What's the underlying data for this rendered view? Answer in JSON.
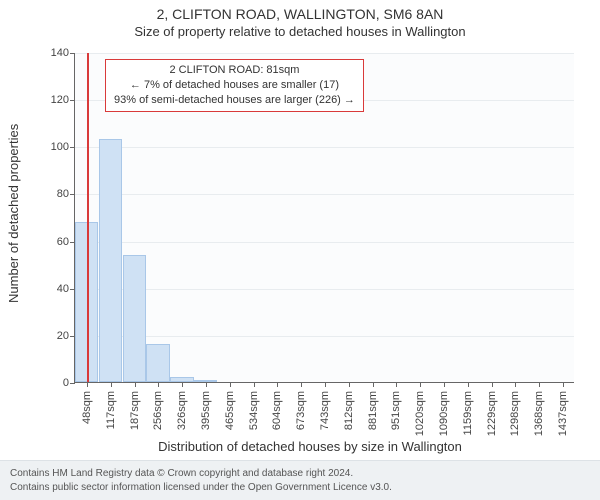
{
  "title_main": "2, CLIFTON ROAD, WALLINGTON, SM6 8AN",
  "title_sub": "Size of property relative to detached houses in Wallington",
  "ylabel": "Number of detached properties",
  "xlabel": "Distribution of detached houses by size in Wallington",
  "footer_line1": "Contains HM Land Registry data © Crown copyright and database right 2024.",
  "footer_line2": "Contains public sector information licensed under the Open Government Licence v3.0.",
  "chart": {
    "type": "bar",
    "background_color": "#fbfcfd",
    "grid_color": "#e8ecef",
    "axis_color": "#666666",
    "bar_fill": "#cfe1f4",
    "bar_border": "#a9c7e8",
    "marker_color": "#d93a3a",
    "ylim": [
      0,
      140
    ],
    "ytick_step": 20,
    "xticks": [
      "48sqm",
      "117sqm",
      "187sqm",
      "256sqm",
      "326sqm",
      "395sqm",
      "465sqm",
      "534sqm",
      "604sqm",
      "673sqm",
      "743sqm",
      "812sqm",
      "881sqm",
      "951sqm",
      "1020sqm",
      "1090sqm",
      "1159sqm",
      "1229sqm",
      "1298sqm",
      "1368sqm",
      "1437sqm"
    ],
    "values": [
      68,
      103,
      54,
      16,
      2,
      1,
      0,
      0,
      0,
      0,
      0,
      0,
      0,
      0,
      0,
      0,
      0,
      0,
      0,
      0,
      0
    ],
    "marker_x": 81,
    "xrange": [
      48,
      1437
    ],
    "annotation": {
      "line1": "2 CLIFTON ROAD: 81sqm",
      "line2": "← 7% of detached houses are smaller (17)",
      "line3": "93% of semi-detached houses are larger (226) →"
    },
    "label_fontsize": 11,
    "axis_label_fontsize": 13,
    "title_fontsize": 14
  }
}
